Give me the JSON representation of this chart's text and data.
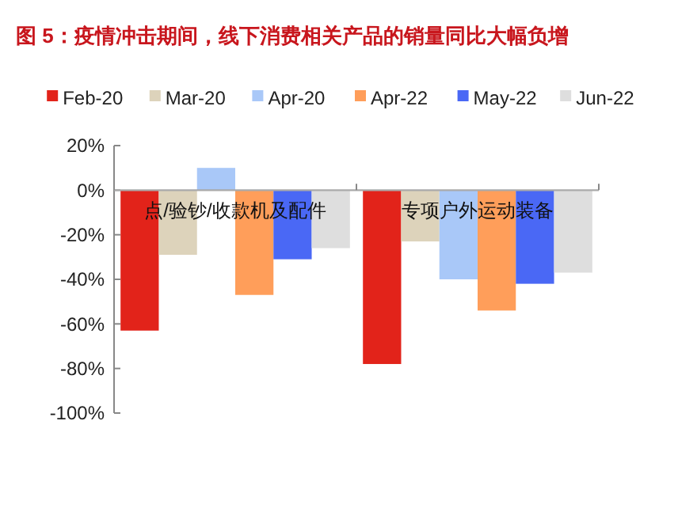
{
  "chart_data": {
    "type": "bar",
    "title": "图 5：疫情冲击期间，线下消费相关产品的销量同比大幅负增",
    "categories": [
      "点/验钞/收款机及配件",
      "专项户外运动装备"
    ],
    "series": [
      {
        "name": "Feb-20",
        "color": "#e2231a",
        "values": [
          -63,
          -78
        ]
      },
      {
        "name": "Mar-20",
        "color": "#ddd3bb",
        "values": [
          -29,
          -23
        ]
      },
      {
        "name": "Apr-20",
        "color": "#a9c8f8",
        "values": [
          10,
          -40
        ]
      },
      {
        "name": "Apr-22",
        "color": "#ff9e5a",
        "values": [
          -47,
          -54
        ]
      },
      {
        "name": "May-22",
        "color": "#4a68f5",
        "values": [
          -31,
          -42
        ]
      },
      {
        "name": "Jun-22",
        "color": "#dedede",
        "values": [
          -26,
          -37
        ]
      }
    ],
    "ylim": [
      -100,
      20
    ],
    "yticks": [
      {
        "value": 20,
        "label": "20%"
      },
      {
        "value": 0,
        "label": "0%"
      },
      {
        "value": -20,
        "label": "-20%"
      },
      {
        "value": -40,
        "label": "-40%"
      },
      {
        "value": -60,
        "label": "-60%"
      },
      {
        "value": -80,
        "label": "-80%"
      },
      {
        "value": -100,
        "label": "-100%"
      }
    ],
    "grid": false,
    "legend": "top"
  }
}
